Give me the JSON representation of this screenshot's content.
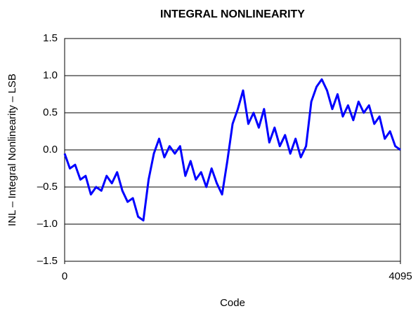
{
  "chart_data": {
    "type": "line",
    "title": "INTEGRAL NONLINEARITY",
    "xlabel": "Code",
    "ylabel": "INL – Integral Nonlinearity – LSB",
    "x": [
      0,
      64,
      128,
      192,
      256,
      320,
      384,
      448,
      512,
      576,
      640,
      704,
      768,
      832,
      896,
      960,
      1024,
      1088,
      1152,
      1216,
      1280,
      1344,
      1408,
      1472,
      1536,
      1600,
      1664,
      1728,
      1792,
      1856,
      1920,
      1984,
      2048,
      2112,
      2176,
      2240,
      2304,
      2368,
      2432,
      2496,
      2560,
      2624,
      2688,
      2752,
      2816,
      2880,
      2944,
      3008,
      3072,
      3136,
      3200,
      3264,
      3328,
      3392,
      3456,
      3520,
      3584,
      3648,
      3712,
      3776,
      3840,
      3904,
      3968,
      4032,
      4095
    ],
    "values": [
      -0.05,
      -0.25,
      -0.2,
      -0.4,
      -0.35,
      -0.6,
      -0.5,
      -0.55,
      -0.35,
      -0.45,
      -0.3,
      -0.55,
      -0.7,
      -0.65,
      -0.9,
      -0.95,
      -0.4,
      -0.05,
      0.15,
      -0.1,
      0.05,
      -0.05,
      0.05,
      -0.35,
      -0.15,
      -0.4,
      -0.3,
      -0.5,
      -0.25,
      -0.45,
      -0.6,
      -0.15,
      0.35,
      0.55,
      0.8,
      0.35,
      0.5,
      0.3,
      0.55,
      0.1,
      0.3,
      0.05,
      0.2,
      -0.05,
      0.15,
      -0.1,
      0.05,
      0.65,
      0.85,
      0.95,
      0.8,
      0.55,
      0.75,
      0.45,
      0.6,
      0.4,
      0.65,
      0.5,
      0.6,
      0.35,
      0.45,
      0.15,
      0.25,
      0.05,
      0.0
    ],
    "color": "#0000ff",
    "xlim": [
      0,
      4095
    ],
    "xticks": [
      0,
      4095
    ],
    "ylim": [
      -1.5,
      1.5
    ],
    "yticks": [
      1.5,
      {
        "value": 1,
        "label": "1.0"
      },
      0.5,
      {
        "value": 0,
        "label": "0.0"
      },
      {
        "value": -0.5,
        "label": "–0.5"
      },
      {
        "value": -1,
        "label": "–1.0"
      },
      {
        "value": -1.5,
        "label": "–1.5"
      }
    ],
    "grid": true
  }
}
